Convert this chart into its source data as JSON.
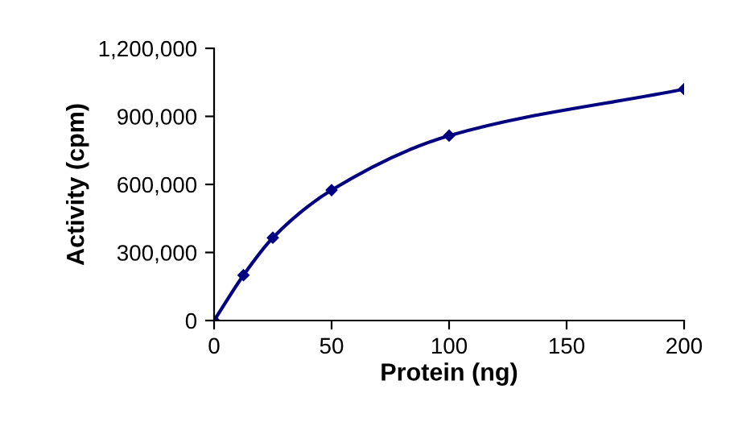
{
  "chart_data": {
    "type": "line",
    "xlabel": "Protein (ng)",
    "ylabel": "Activity (cpm)",
    "x": [
      0,
      12.5,
      25,
      50,
      100,
      200
    ],
    "series": [
      {
        "color": "#000080",
        "values": [
          0,
          200000,
          365000,
          575000,
          815000,
          1020000
        ]
      }
    ],
    "xlim": [
      0,
      200
    ],
    "xticks": [
      0,
      50,
      100,
      150,
      200
    ],
    "ylim": [
      0,
      1200000
    ],
    "yticks": [
      {
        "value": 0,
        "label": "0"
      },
      {
        "value": 300000,
        "label": "300,000"
      },
      {
        "value": 600000,
        "label": "600,000"
      },
      {
        "value": 900000,
        "label": "900,000"
      },
      {
        "value": 1200000,
        "label": "1,200,000"
      }
    ],
    "marker": "diamond",
    "line_style": "solid",
    "grid": false
  }
}
